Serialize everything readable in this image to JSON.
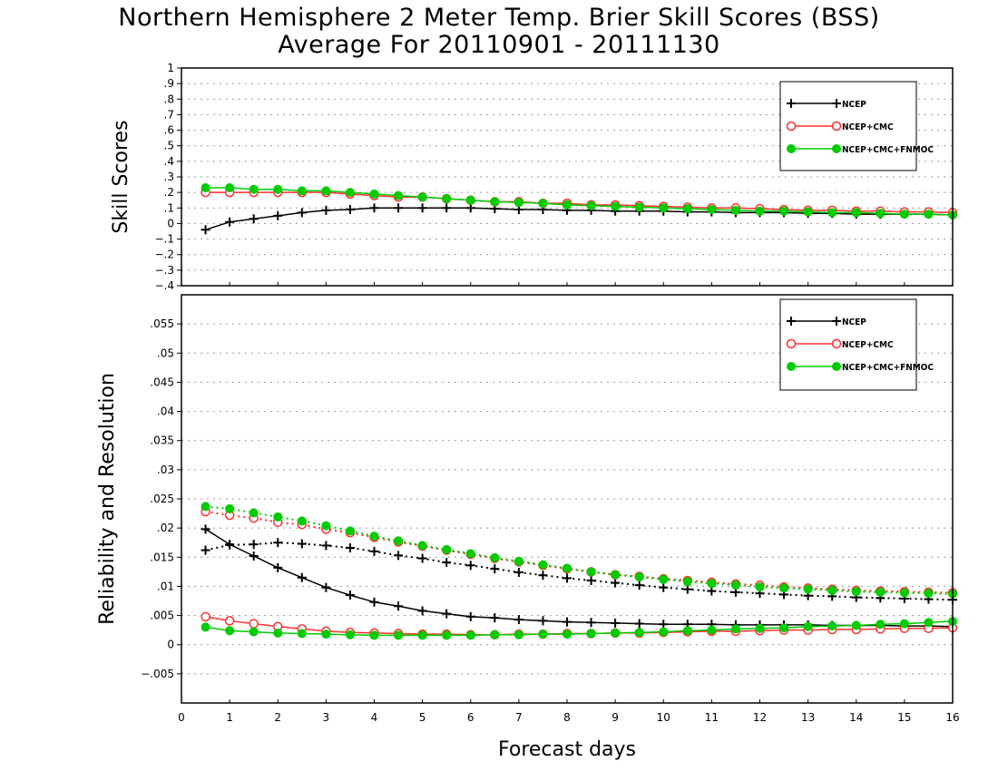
{
  "title": "Northern Hemisphere 2 Meter Temp. Brier Skill Scores (BSS)",
  "subtitle": "Average For 20110901 - 20111130",
  "colors": {
    "ncep": "#000000",
    "ncep_cmc": "#ff3030",
    "all": "#00cc00"
  },
  "chart_data": [
    {
      "type": "line",
      "ylabel": "Skill Scores",
      "ylim": [
        -0.4,
        1
      ],
      "yticks": [
        -0.4,
        -0.3,
        -0.2,
        -0.1,
        0,
        0.1,
        0.2,
        0.3,
        0.4,
        0.5,
        0.6,
        0.7,
        0.8,
        0.9,
        1
      ],
      "xlim": [
        0,
        16
      ],
      "legend_position": "top-right",
      "x": [
        0.5,
        1,
        1.5,
        2,
        2.5,
        3,
        3.5,
        4,
        4.5,
        5,
        5.5,
        6,
        6.5,
        7,
        7.5,
        8,
        8.5,
        9,
        9.5,
        10,
        10.5,
        11,
        11.5,
        12,
        12.5,
        13,
        13.5,
        14,
        14.5,
        15,
        15.5,
        16
      ],
      "series": [
        {
          "name": "NCEP",
          "style": "solid",
          "marker": "plus",
          "color": "#000000",
          "values": [
            -0.04,
            0.01,
            0.03,
            0.05,
            0.07,
            0.085,
            0.09,
            0.1,
            0.1,
            0.1,
            0.1,
            0.1,
            0.095,
            0.09,
            0.09,
            0.085,
            0.085,
            0.08,
            0.08,
            0.08,
            0.075,
            0.075,
            0.07,
            0.07,
            0.07,
            0.065,
            0.065,
            0.06,
            0.06,
            0.06,
            0.06,
            0.055
          ]
        },
        {
          "name": "NCEP+CMC",
          "style": "solid",
          "marker": "open-circle",
          "color": "#ff3030",
          "values": [
            0.2,
            0.2,
            0.2,
            0.2,
            0.2,
            0.2,
            0.19,
            0.18,
            0.17,
            0.17,
            0.16,
            0.15,
            0.14,
            0.14,
            0.13,
            0.13,
            0.12,
            0.12,
            0.115,
            0.11,
            0.105,
            0.1,
            0.1,
            0.095,
            0.09,
            0.085,
            0.085,
            0.08,
            0.08,
            0.075,
            0.075,
            0.07
          ]
        },
        {
          "name": "NCEP+CMC+FNMOC",
          "style": "solid",
          "marker": "filled-circle",
          "color": "#00cc00",
          "values": [
            0.23,
            0.23,
            0.22,
            0.22,
            0.21,
            0.21,
            0.2,
            0.19,
            0.18,
            0.17,
            0.16,
            0.15,
            0.14,
            0.135,
            0.13,
            0.12,
            0.115,
            0.11,
            0.105,
            0.1,
            0.095,
            0.09,
            0.085,
            0.08,
            0.08,
            0.075,
            0.07,
            0.07,
            0.065,
            0.06,
            0.06,
            0.055
          ]
        }
      ]
    },
    {
      "type": "line",
      "ylabel": "Reliability and Resolution",
      "xlabel": "Forecast days",
      "ylim": [
        -0.01,
        0.06
      ],
      "yticks": [
        -0.005,
        0,
        0.005,
        0.01,
        0.015,
        0.02,
        0.025,
        0.03,
        0.035,
        0.04,
        0.045,
        0.05,
        0.055
      ],
      "xlim": [
        0,
        16
      ],
      "xticks": [
        0,
        1,
        2,
        3,
        4,
        5,
        6,
        7,
        8,
        9,
        10,
        11,
        12,
        13,
        14,
        15,
        16
      ],
      "legend_position": "top-right",
      "x": [
        0.5,
        1,
        1.5,
        2,
        2.5,
        3,
        3.5,
        4,
        4.5,
        5,
        5.5,
        6,
        6.5,
        7,
        7.5,
        8,
        8.5,
        9,
        9.5,
        10,
        10.5,
        11,
        11.5,
        12,
        12.5,
        13,
        13.5,
        14,
        14.5,
        15,
        15.5,
        16
      ],
      "series": [
        {
          "name": "NCEP",
          "style": "solid",
          "marker": "plus",
          "color": "#000000",
          "legend": true,
          "values": [
            0.0198,
            0.0172,
            0.0152,
            0.0132,
            0.0115,
            0.0098,
            0.0085,
            0.0073,
            0.0066,
            0.0058,
            0.0053,
            0.0048,
            0.0046,
            0.0043,
            0.0041,
            0.0039,
            0.0038,
            0.0037,
            0.0036,
            0.0035,
            0.0035,
            0.0035,
            0.0034,
            0.0034,
            0.0034,
            0.0034,
            0.0033,
            0.0033,
            0.0033,
            0.0032,
            0.0032,
            0.0031
          ]
        },
        {
          "name": "NCEP",
          "style": "dotted",
          "marker": "plus",
          "color": "#000000",
          "legend": false,
          "values": [
            0.0162,
            0.0171,
            0.0172,
            0.0175,
            0.0173,
            0.017,
            0.0166,
            0.016,
            0.0153,
            0.0148,
            0.0141,
            0.0136,
            0.013,
            0.0124,
            0.0119,
            0.0114,
            0.011,
            0.0106,
            0.0102,
            0.0098,
            0.0095,
            0.0092,
            0.009,
            0.0088,
            0.0086,
            0.0084,
            0.0083,
            0.0081,
            0.008,
            0.0079,
            0.0078,
            0.0077
          ]
        },
        {
          "name": "NCEP+CMC",
          "style": "solid",
          "marker": "open-circle",
          "color": "#ff3030",
          "legend": true,
          "values": [
            0.0048,
            0.0041,
            0.0036,
            0.0031,
            0.0027,
            0.0023,
            0.0021,
            0.002,
            0.0019,
            0.0018,
            0.0018,
            0.0017,
            0.0017,
            0.0018,
            0.0018,
            0.0019,
            0.0019,
            0.002,
            0.002,
            0.0021,
            0.0022,
            0.0023,
            0.0023,
            0.0024,
            0.0025,
            0.0025,
            0.0026,
            0.0026,
            0.0027,
            0.0028,
            0.0028,
            0.0029
          ]
        },
        {
          "name": "NCEP+CMC",
          "style": "dotted",
          "marker": "open-circle",
          "color": "#ff3030",
          "legend": false,
          "values": [
            0.0228,
            0.0222,
            0.0217,
            0.021,
            0.0206,
            0.0198,
            0.0192,
            0.0184,
            0.0176,
            0.0169,
            0.0162,
            0.0155,
            0.0148,
            0.0142,
            0.0136,
            0.013,
            0.0125,
            0.012,
            0.0117,
            0.0113,
            0.011,
            0.0107,
            0.0104,
            0.0102,
            0.0099,
            0.0097,
            0.0095,
            0.0093,
            0.0092,
            0.0091,
            0.009,
            0.0089
          ]
        },
        {
          "name": "NCEP+CMC+FNMOC",
          "style": "solid",
          "marker": "filled-circle",
          "color": "#00cc00",
          "legend": true,
          "values": [
            0.003,
            0.0024,
            0.0022,
            0.002,
            0.0019,
            0.0018,
            0.0017,
            0.0016,
            0.0016,
            0.0016,
            0.0016,
            0.0016,
            0.0017,
            0.0017,
            0.0018,
            0.0018,
            0.0019,
            0.002,
            0.0021,
            0.0022,
            0.0024,
            0.0025,
            0.0027,
            0.0028,
            0.0029,
            0.0031,
            0.0032,
            0.0033,
            0.0035,
            0.0036,
            0.0038,
            0.004
          ]
        },
        {
          "name": "NCEP+CMC+FNMOC",
          "style": "dotted",
          "marker": "filled-circle",
          "color": "#00cc00",
          "legend": false,
          "values": [
            0.0237,
            0.0233,
            0.0226,
            0.0219,
            0.0212,
            0.0204,
            0.0195,
            0.0186,
            0.0178,
            0.017,
            0.0163,
            0.0156,
            0.0149,
            0.0143,
            0.0137,
            0.0131,
            0.0125,
            0.012,
            0.0116,
            0.0112,
            0.0108,
            0.0105,
            0.0102,
            0.0099,
            0.0097,
            0.0095,
            0.0093,
            0.0091,
            0.009,
            0.0089,
            0.0088,
            0.0087
          ]
        }
      ]
    }
  ]
}
